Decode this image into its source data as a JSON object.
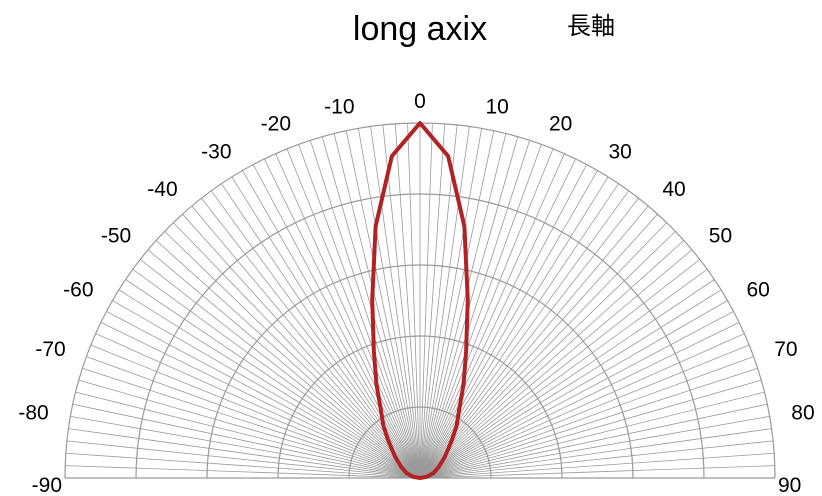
{
  "chart_data": {
    "type": "polar-line",
    "title": "long axix",
    "subtitle": "長軸",
    "angle_ticks": [
      -90,
      -80,
      -70,
      -60,
      -50,
      -40,
      -30,
      -20,
      -10,
      0,
      10,
      20,
      30,
      40,
      50,
      60,
      70,
      80,
      90
    ],
    "angle_range": [
      -90,
      90
    ],
    "radial_range": [
      0,
      1
    ],
    "radial_rings": [
      0.2,
      0.4,
      0.6,
      0.8,
      1.0
    ],
    "radial_grid": true,
    "angular_grid_step": 2,
    "series": [
      {
        "angles": [
          -90,
          -80,
          -70,
          -60,
          -50,
          -45,
          -40,
          -35,
          -30,
          -25,
          -20,
          -15,
          -10,
          -5,
          0,
          5,
          10,
          15,
          20,
          25,
          30,
          35,
          40,
          45,
          50,
          60,
          70,
          80,
          90
        ],
        "values": [
          0.0,
          0.02,
          0.04,
          0.06,
          0.09,
          0.11,
          0.14,
          0.18,
          0.22,
          0.29,
          0.38,
          0.52,
          0.72,
          0.91,
          1.0,
          0.91,
          0.72,
          0.52,
          0.38,
          0.29,
          0.22,
          0.18,
          0.14,
          0.11,
          0.09,
          0.06,
          0.04,
          0.02,
          0.0
        ],
        "color": "#b22222"
      }
    ],
    "colors": {
      "grid": "#9a9a9a",
      "series": "#b22222",
      "text": "#000000"
    }
  }
}
